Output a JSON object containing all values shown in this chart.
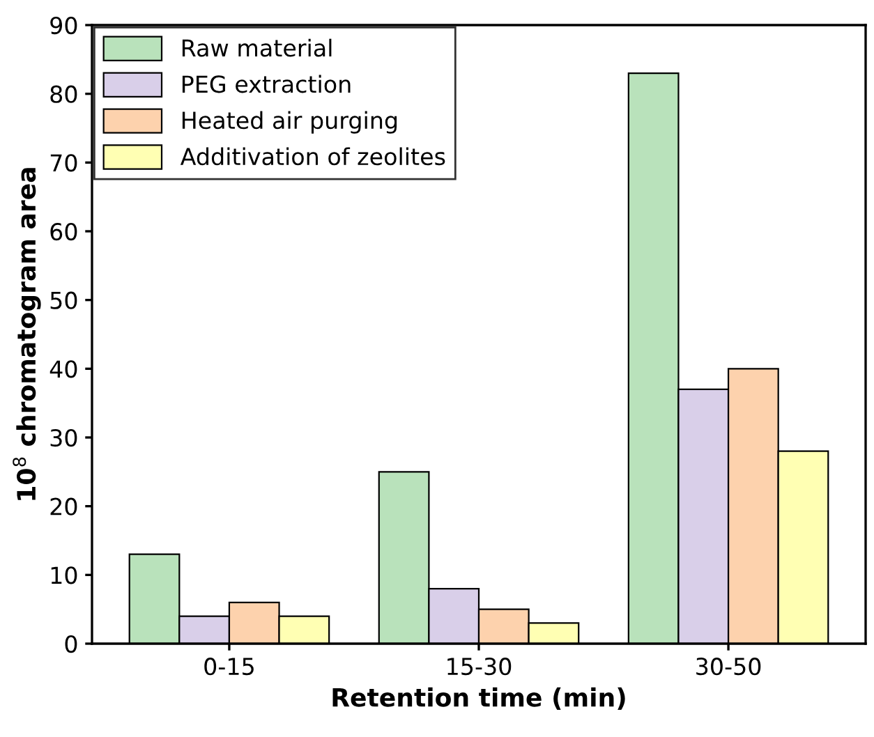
{
  "chart_data": {
    "type": "bar",
    "xlabel": "Retention time (min)",
    "ylabel": "10$^{8}$ chromatogram area",
    "categories": [
      "0-15",
      "15-30",
      "30-50"
    ],
    "series": [
      {
        "name": "Raw material",
        "color": "#b9e2bb",
        "values": [
          13,
          25,
          83
        ]
      },
      {
        "name": "PEG extraction",
        "color": "#d9cfe9",
        "values": [
          4,
          8,
          37
        ]
      },
      {
        "name": "Heated air purging",
        "color": "#fdd2ad",
        "values": [
          6,
          5,
          40
        ]
      },
      {
        "name": "Additivation of zeolites",
        "color": "#ffffb3",
        "values": [
          4,
          3,
          28
        ]
      }
    ],
    "ylim": [
      0,
      90
    ],
    "yticks": [
      0,
      10,
      20,
      30,
      40,
      50,
      60,
      70,
      80,
      90
    ],
    "grid": false,
    "legend": "top left"
  }
}
